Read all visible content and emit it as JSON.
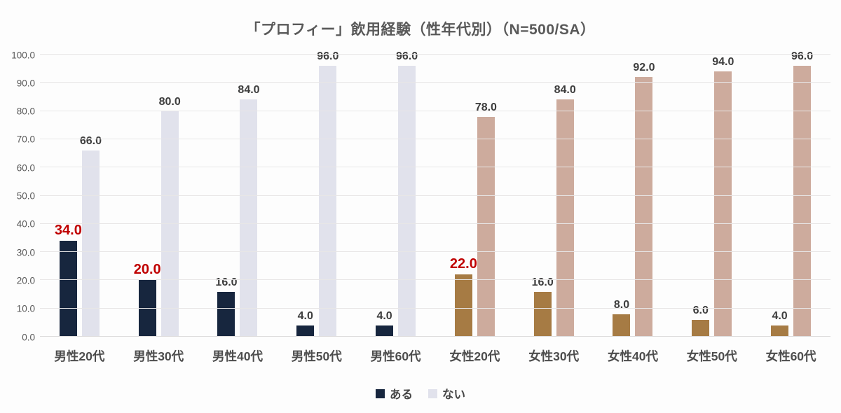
{
  "chart_data": {
    "type": "bar",
    "title": "「プロフィー」飲用経験（性年代別）（N=500/SA）",
    "categories": [
      "男性20代",
      "男性30代",
      "男性40代",
      "男性50代",
      "男性60代",
      "女性20代",
      "女性30代",
      "女性40代",
      "女性50代",
      "女性60代"
    ],
    "series": [
      {
        "name": "ある",
        "values": [
          34.0,
          20.0,
          16.0,
          4.0,
          4.0,
          22.0,
          16.0,
          8.0,
          6.0,
          4.0
        ],
        "colors": [
          "#17263e",
          "#17263e",
          "#17263e",
          "#17263e",
          "#17263e",
          "#a67b44",
          "#a67b44",
          "#a67b44",
          "#a67b44",
          "#a67b44"
        ],
        "highlight": [
          true,
          true,
          false,
          false,
          false,
          true,
          false,
          false,
          false,
          false
        ]
      },
      {
        "name": "ない",
        "values": [
          66.0,
          80.0,
          84.0,
          96.0,
          96.0,
          78.0,
          84.0,
          92.0,
          94.0,
          96.0
        ],
        "colors": [
          "#e1e2ec",
          "#e1e2ec",
          "#e1e2ec",
          "#e1e2ec",
          "#e1e2ec",
          "#cdab9d",
          "#cdab9d",
          "#cdab9d",
          "#cdab9d",
          "#cdab9d"
        ],
        "highlight": [
          false,
          false,
          false,
          false,
          false,
          false,
          false,
          false,
          false,
          false
        ]
      }
    ],
    "ylim": [
      0,
      100
    ],
    "yticks": [
      0,
      10,
      20,
      30,
      40,
      50,
      60,
      70,
      80,
      90,
      100
    ],
    "value_decimals": 1,
    "grid": true,
    "legend_position": "bottom",
    "legend": [
      {
        "label": "ある",
        "color": "#17263e"
      },
      {
        "label": "ない",
        "color": "#e1e2ec"
      }
    ],
    "colors": {
      "highlight_label": "#c00000",
      "value_label": "#3d3d3d",
      "axis_text": "#595959",
      "gridline": "#e8e6e6"
    }
  }
}
